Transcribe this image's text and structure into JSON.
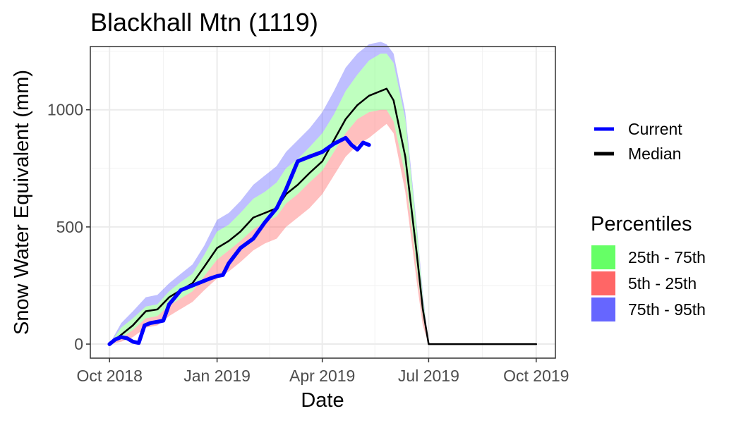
{
  "chart_data": {
    "type": "area",
    "title": "Blackhall Mtn (1119)",
    "xlabel": "Date",
    "ylabel": "Snow Water Equivalent (mm)",
    "x_range": [
      "2018-10-01",
      "2019-10-01"
    ],
    "ylim": [
      -60,
      1270
    ],
    "x_ticks": [
      {
        "date": "2018-10-01",
        "label": "Oct 2018"
      },
      {
        "date": "2019-01-01",
        "label": "Jan 2019"
      },
      {
        "date": "2019-04-01",
        "label": "Apr 2019"
      },
      {
        "date": "2019-07-01",
        "label": "Jul 2019"
      },
      {
        "date": "2019-10-01",
        "label": "Oct 2019"
      }
    ],
    "y_ticks": [
      0,
      500,
      1000
    ],
    "grid": true,
    "legend_position": "right",
    "dates": [
      "2018-10-01",
      "2018-10-11",
      "2018-10-21",
      "2018-11-01",
      "2018-11-11",
      "2018-11-21",
      "2018-12-01",
      "2018-12-11",
      "2018-12-21",
      "2019-01-01",
      "2019-01-11",
      "2019-01-21",
      "2019-02-01",
      "2019-02-11",
      "2019-02-21",
      "2019-03-01",
      "2019-03-11",
      "2019-03-21",
      "2019-04-01",
      "2019-04-11",
      "2019-04-21",
      "2019-05-01",
      "2019-05-11",
      "2019-05-21",
      "2019-05-26",
      "2019-06-01",
      "2019-06-11",
      "2019-06-21",
      "2019-06-26",
      "2019-07-01",
      "2019-08-01",
      "2019-09-01",
      "2019-10-01"
    ],
    "series": [
      {
        "name": "Median",
        "color": "#000000",
        "values": [
          0,
          40,
          80,
          140,
          148,
          200,
          230,
          260,
          330,
          410,
          440,
          480,
          540,
          560,
          580,
          640,
          680,
          730,
          780,
          870,
          960,
          1020,
          1060,
          1080,
          1090,
          1040,
          800,
          380,
          150,
          0,
          0,
          0,
          0
        ]
      },
      {
        "name": "Current",
        "color": "#0000ff",
        "dates": [
          "2018-10-01",
          "2018-10-06",
          "2018-10-11",
          "2018-10-16",
          "2018-10-21",
          "2018-10-26",
          "2018-10-31",
          "2018-11-05",
          "2018-11-11",
          "2018-11-16",
          "2018-11-21",
          "2018-11-26",
          "2018-12-01",
          "2018-12-11",
          "2018-12-21",
          "2018-12-26",
          "2019-01-01",
          "2019-01-06",
          "2019-01-11",
          "2019-01-21",
          "2019-02-01",
          "2019-02-11",
          "2019-02-21",
          "2019-03-01",
          "2019-03-11",
          "2019-03-21",
          "2019-04-01",
          "2019-04-11",
          "2019-04-21",
          "2019-04-26",
          "2019-05-01",
          "2019-05-06",
          "2019-05-11"
        ],
        "values": [
          0,
          20,
          30,
          25,
          10,
          5,
          80,
          90,
          95,
          100,
          170,
          200,
          230,
          250,
          270,
          280,
          290,
          295,
          345,
          410,
          450,
          520,
          580,
          660,
          780,
          800,
          820,
          855,
          880,
          850,
          830,
          860,
          850
        ]
      }
    ],
    "bands": [
      {
        "name": "75th - 95th",
        "color": "#6666ff",
        "lower": [
          0,
          70,
          110,
          160,
          170,
          225,
          265,
          300,
          380,
          480,
          510,
          560,
          620,
          650,
          690,
          750,
          790,
          840,
          900,
          980,
          1080,
          1150,
          1210,
          1240,
          1240,
          1200,
          960,
          480,
          200,
          0,
          0,
          0,
          0
        ],
        "upper": [
          0,
          90,
          140,
          200,
          210,
          260,
          300,
          340,
          420,
          530,
          560,
          610,
          680,
          720,
          760,
          820,
          870,
          920,
          990,
          1080,
          1180,
          1240,
          1280,
          1290,
          1280,
          1240,
          990,
          500,
          220,
          0,
          0,
          0,
          0
        ]
      },
      {
        "name": "25th - 75th",
        "color": "#66ff66",
        "lower": [
          0,
          25,
          60,
          110,
          120,
          165,
          195,
          225,
          290,
          360,
          400,
          440,
          490,
          520,
          545,
          600,
          640,
          690,
          740,
          820,
          900,
          960,
          990,
          1000,
          1000,
          950,
          720,
          320,
          120,
          0,
          0,
          0,
          0
        ],
        "upper": [
          0,
          70,
          110,
          160,
          170,
          225,
          265,
          300,
          380,
          480,
          510,
          560,
          620,
          650,
          690,
          750,
          790,
          840,
          900,
          980,
          1080,
          1150,
          1210,
          1240,
          1240,
          1200,
          960,
          480,
          200,
          0,
          0,
          0,
          0
        ]
      },
      {
        "name": "5th - 25th",
        "color": "#ff6666",
        "lower": [
          0,
          10,
          30,
          70,
          80,
          120,
          150,
          180,
          230,
          280,
          310,
          350,
          400,
          430,
          450,
          500,
          540,
          580,
          640,
          720,
          800,
          850,
          880,
          920,
          940,
          900,
          650,
          260,
          80,
          0,
          0,
          0,
          0
        ],
        "upper": [
          0,
          25,
          60,
          110,
          120,
          165,
          195,
          225,
          290,
          360,
          400,
          440,
          490,
          520,
          545,
          600,
          640,
          690,
          740,
          820,
          900,
          960,
          990,
          1000,
          1000,
          950,
          720,
          320,
          120,
          0,
          0,
          0,
          0
        ]
      }
    ]
  },
  "legend": {
    "lines": [
      {
        "label": "Current",
        "color": "#0000ff"
      },
      {
        "label": "Median",
        "color": "#000000"
      }
    ],
    "percentiles_title": "Percentiles",
    "percentiles": [
      {
        "label": "25th - 75th",
        "color": "#66ff66"
      },
      {
        "label": "5th - 25th",
        "color": "#ff6666"
      },
      {
        "label": "75th - 95th",
        "color": "#6666ff"
      }
    ]
  }
}
